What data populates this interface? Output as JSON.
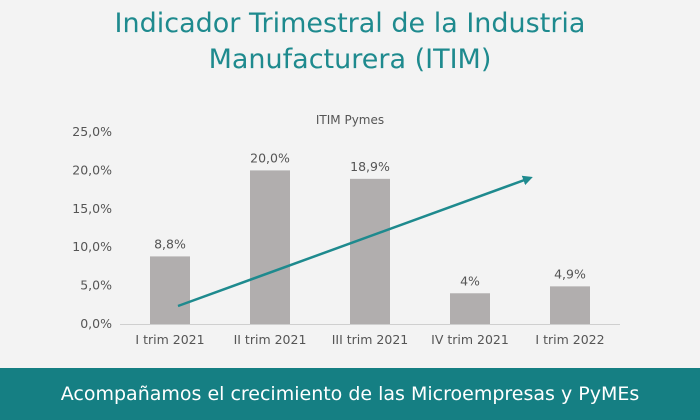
{
  "header": {
    "title_line1": "Indicador Trimestral de la Industria",
    "title_line2": "Manufacturera (ITIM)"
  },
  "footer": {
    "text": "Acompañamos el crecimiento de las Microempresas y PyMEs"
  },
  "colors": {
    "title": "#1e8a8e",
    "bar": "#b1aeae",
    "arrow": "#1e8a8e",
    "footer_bg": "#157f83",
    "background": "#f3f3f3"
  },
  "chart_data": {
    "type": "bar",
    "title": "ITIM Pymes",
    "categories": [
      "I trim 2021",
      "II trim 2021",
      "III trim 2021",
      "IV trim 2021",
      "I trim 2022"
    ],
    "values": [
      8.8,
      20.0,
      18.9,
      4.0,
      4.9
    ],
    "data_labels": [
      "8,8%",
      "20,0%",
      "18,9%",
      "4%",
      "4,9%"
    ],
    "y_ticks": [
      0,
      5,
      10,
      15,
      20,
      25
    ],
    "y_tick_labels": [
      "0,0%",
      "5,0%",
      "10,0%",
      "15,0%",
      "20,0%",
      "25,0%"
    ],
    "ylim": [
      0,
      25
    ],
    "grid": false,
    "trend_arrow": true
  }
}
